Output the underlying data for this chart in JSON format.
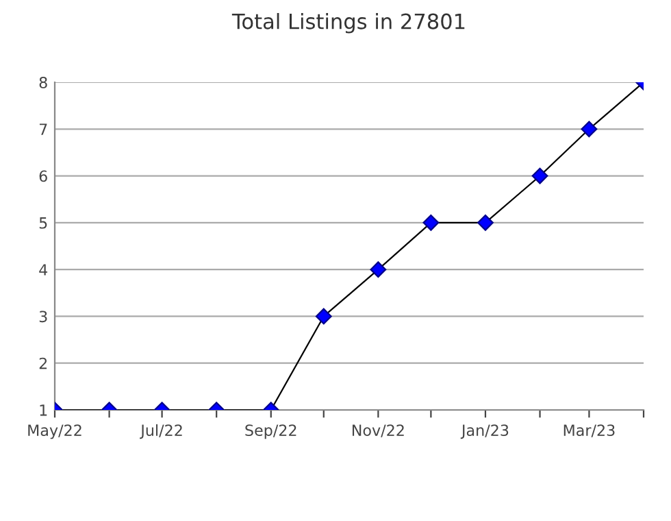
{
  "chart_data": {
    "type": "line",
    "title": "Total Listings in 27801",
    "x": [
      "2022-05",
      "2022-06",
      "2022-07",
      "2022-08",
      "2022-09",
      "2022-10",
      "2022-11",
      "2022-12",
      "2023-01",
      "2023-02",
      "2023-03",
      "2023-04"
    ],
    "series": [
      {
        "color": "#0000ff",
        "values": [
          1,
          1,
          1,
          1,
          1,
          3,
          4,
          5,
          5,
          6,
          7,
          8
        ]
      }
    ],
    "xlim": [
      "2022-05",
      "2023-04"
    ],
    "xticks": [
      {
        "value": "2022-05",
        "label": "May/22"
      },
      {
        "value": "2022-06",
        "label": null
      },
      {
        "value": "2022-07",
        "label": "Jul/22"
      },
      {
        "value": "2022-08",
        "label": null
      },
      {
        "value": "2022-09",
        "label": "Sep/22"
      },
      {
        "value": "2022-10",
        "label": null
      },
      {
        "value": "2022-11",
        "label": "Nov/22"
      },
      {
        "value": "2022-12",
        "label": null
      },
      {
        "value": "2023-01",
        "label": "Jan/23"
      },
      {
        "value": "2023-02",
        "label": null
      },
      {
        "value": "2023-03",
        "label": "Mar/23"
      },
      {
        "value": "2023-04",
        "label": null
      }
    ],
    "ylim": [
      1,
      8
    ],
    "yticks": [
      1,
      2,
      3,
      4,
      5,
      6,
      7,
      8
    ],
    "grid": "y",
    "marker": "diamond",
    "line_style": "solid",
    "legend": false
  }
}
